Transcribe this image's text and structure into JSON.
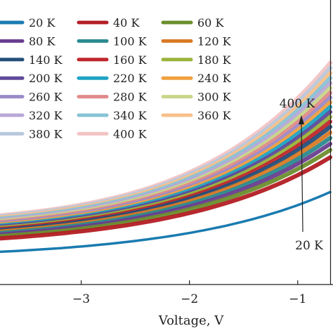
{
  "chart_data": {
    "type": "line",
    "xlabel": "Voltage, V",
    "xticks": [
      {
        "value": -3,
        "label": "−3"
      },
      {
        "value": -2,
        "label": "−2"
      },
      {
        "value": -1,
        "label": "−1"
      }
    ],
    "x_range": [
      -3.75,
      -0.7
    ],
    "y_range": [
      0,
      1
    ],
    "grid": false,
    "legend_placement": "top-left",
    "annotations": [
      {
        "id": "top",
        "text": "400 K"
      },
      {
        "id": "bottom",
        "text": "20 K"
      }
    ],
    "series": [
      {
        "name": "20 K",
        "color": "#1a7bb0",
        "values": [
          0.115,
          0.21
        ]
      },
      {
        "name": "40 K",
        "color": "#b31e24",
        "values": [
          0.162,
          0.28
        ]
      },
      {
        "name": "60 K",
        "color": "#6b8e2d",
        "values": [
          0.17,
          0.292
        ]
      },
      {
        "name": "80 K",
        "color": "#6a3d8f",
        "values": [
          0.176,
          0.302
        ]
      },
      {
        "name": "100 K",
        "color": "#2a8a8f",
        "values": [
          0.181,
          0.311
        ]
      },
      {
        "name": "120 K",
        "color": "#d87a25",
        "values": [
          0.186,
          0.319
        ]
      },
      {
        "name": "140 K",
        "color": "#244f7a",
        "values": [
          0.191,
          0.327
        ]
      },
      {
        "name": "160 K",
        "color": "#c0272d",
        "values": [
          0.195,
          0.334
        ]
      },
      {
        "name": "180 K",
        "color": "#9ab43c",
        "values": [
          0.199,
          0.34
        ]
      },
      {
        "name": "200 K",
        "color": "#5f4a9a",
        "values": [
          0.203,
          0.346
        ]
      },
      {
        "name": "220 K",
        "color": "#1fa3c4",
        "values": [
          0.207,
          0.352
        ]
      },
      {
        "name": "240 K",
        "color": "#f0a040",
        "values": [
          0.211,
          0.357
        ]
      },
      {
        "name": "260 K",
        "color": "#9b8cc8",
        "values": [
          0.215,
          0.362
        ]
      },
      {
        "name": "280 K",
        "color": "#e08a8a",
        "values": [
          0.219,
          0.367
        ]
      },
      {
        "name": "300 K",
        "color": "#c7d68a",
        "values": [
          0.223,
          0.372
        ]
      },
      {
        "name": "320 K",
        "color": "#b9a8d6",
        "values": [
          0.227,
          0.377
        ]
      },
      {
        "name": "340 K",
        "color": "#86c3d6",
        "values": [
          0.231,
          0.382
        ]
      },
      {
        "name": "360 K",
        "color": "#f7c08a",
        "values": [
          0.235,
          0.387
        ]
      },
      {
        "name": "380 K",
        "color": "#b8c8dc",
        "values": [
          0.239,
          0.392
        ]
      },
      {
        "name": "400 K",
        "color": "#f2c4c4",
        "values": [
          0.243,
          0.397
        ]
      }
    ]
  }
}
